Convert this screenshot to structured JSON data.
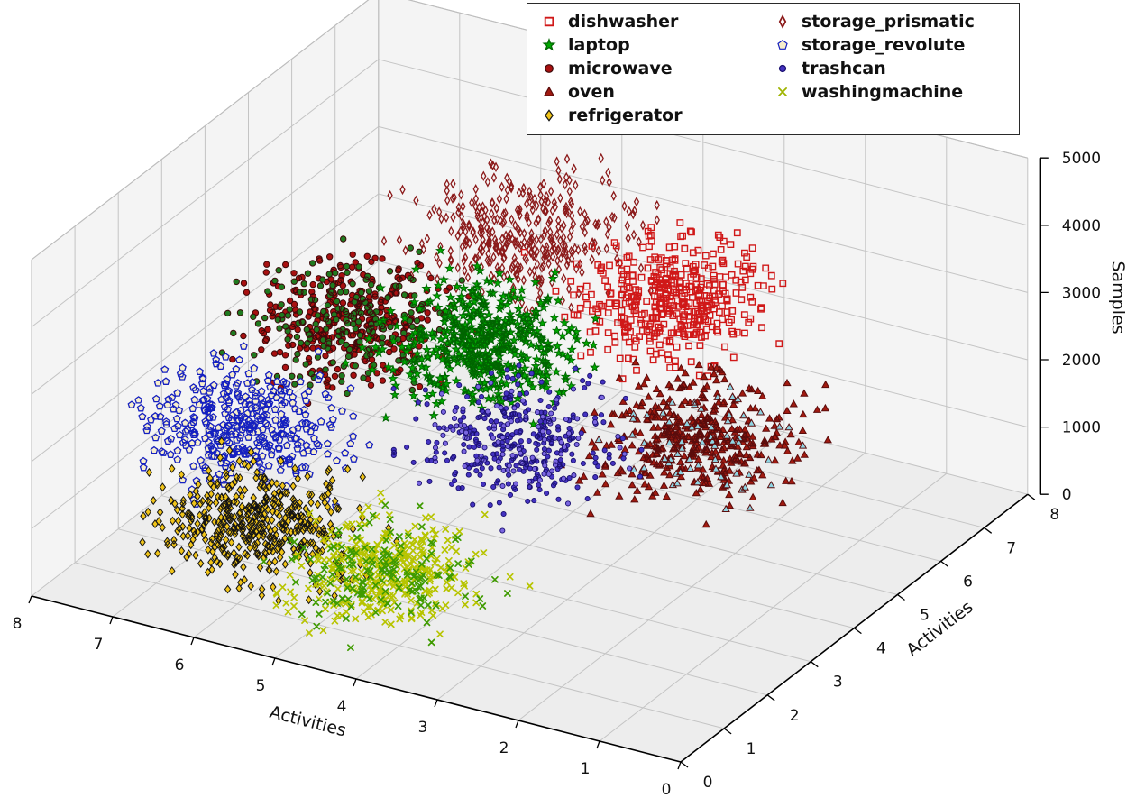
{
  "figure": {
    "background": "#ffffff"
  },
  "legend": {
    "border_color": "#2a2a2a",
    "columns": [
      [
        {
          "label": "dishwasher",
          "marker": "open-square",
          "color": "#d01818",
          "stroke": "#8b0000"
        },
        {
          "label": "laptop",
          "marker": "star",
          "color": "#00a800",
          "stroke": "#006400"
        },
        {
          "label": "microwave",
          "marker": "circle",
          "color": "#a81010",
          "stroke": "#3c0a0a"
        },
        {
          "label": "oven",
          "marker": "triangle",
          "color": "#a01a10",
          "stroke": "#5a0c0c"
        },
        {
          "label": "refrigerator",
          "marker": "diamond",
          "color": "#f0c419",
          "stroke": "#141414"
        }
      ],
      [
        {
          "label": "storage_prismatic",
          "marker": "thin-diamond",
          "color": "#8b1a1a",
          "stroke": "#8b1a1a"
        },
        {
          "label": "storage_revolute",
          "marker": "pentagon",
          "color": "#f7eecb",
          "stroke": "#1520c0"
        },
        {
          "label": "trashcan",
          "marker": "dot",
          "color": "#4433c0",
          "stroke": "#1a1070"
        },
        {
          "label": "washingmachine",
          "marker": "x",
          "color": "#9fb400",
          "stroke": "#3f9b00"
        }
      ]
    ]
  },
  "axes": {
    "x": {
      "label": "Activities",
      "ticks": [
        "0",
        "1",
        "2",
        "3",
        "4",
        "5",
        "6",
        "7",
        "8"
      ]
    },
    "y": {
      "label": "Activities",
      "ticks": [
        "0",
        "1",
        "2",
        "3",
        "4",
        "5",
        "6",
        "7",
        "8"
      ]
    },
    "z": {
      "label": "Samples",
      "ticks": [
        "0",
        "1000",
        "2000",
        "3000",
        "4000",
        "5000"
      ]
    }
  },
  "chart_data": {
    "type": "scatter",
    "projection": "3d",
    "title": "",
    "xlabel": "Activities",
    "ylabel": "Activities",
    "zlabel": "Samples",
    "xlim": [
      0,
      8
    ],
    "ylim": [
      0,
      8
    ],
    "zlim": [
      0,
      5000
    ],
    "grid": true,
    "legend_position": "top-center",
    "series": [
      {
        "name": "storage_prismatic",
        "marker": "thin-diamond",
        "fill": "none",
        "stroke": "#8b1a1a",
        "center": [
          4.5,
          4.9,
          4000
        ],
        "spread": [
          0.55,
          0.6,
          330
        ],
        "count": 380
      },
      {
        "name": "dishwasher",
        "marker": "open-square",
        "fill": "none",
        "stroke": "#d01818",
        "center": [
          3.2,
          5.8,
          3000
        ],
        "spread": [
          0.45,
          0.5,
          320
        ],
        "count": 430
      },
      {
        "name": "microwave",
        "marker": "circle",
        "fill": "#a81010",
        "stroke": "#3c0a0a",
        "alt_fill": "#1f7a1f",
        "alt_frac": 0.35,
        "center": [
          5.95,
          3.5,
          3000
        ],
        "spread": [
          0.5,
          0.5,
          330
        ],
        "count": 520
      },
      {
        "name": "laptop",
        "marker": "star",
        "fill": "#00a800",
        "stroke": "#006400",
        "center": [
          4.4,
          3.7,
          3000
        ],
        "spread": [
          0.5,
          0.5,
          340
        ],
        "count": 500
      },
      {
        "name": "oven",
        "marker": "triangle",
        "fill": "#a01a10",
        "stroke": "#5a0c0c",
        "alt_fill": "#8fd4e2",
        "alt_frac": 0.16,
        "center": [
          2.9,
          5.8,
          1000
        ],
        "spread": [
          0.5,
          0.55,
          320
        ],
        "count": 470
      },
      {
        "name": "storage_revolute",
        "marker": "pentagon",
        "fill": "#f7eecb",
        "stroke": "#1520c0",
        "center": [
          6.5,
          2.0,
          2000
        ],
        "spread": [
          0.5,
          0.5,
          320
        ],
        "count": 400
      },
      {
        "name": "trashcan",
        "marker": "dot",
        "fill": "#4433c0",
        "stroke": "#1a1070",
        "alt_fill": "#7a66e0",
        "alt_frac": 0.25,
        "center": [
          4.2,
          4.2,
          1400
        ],
        "spread": [
          0.5,
          0.55,
          320
        ],
        "count": 400
      },
      {
        "name": "refrigerator",
        "marker": "diamond",
        "fill": "#f0c419",
        "stroke": "#141414",
        "center": [
          6.0,
          1.4,
          1000
        ],
        "spread": [
          0.5,
          0.5,
          320
        ],
        "count": 470
      },
      {
        "name": "washingmachine",
        "marker": "x",
        "fill": "none",
        "stroke": "#b7c400",
        "alt_fill": "#3f9b00",
        "alt_frac": 0.3,
        "center": [
          4.8,
          2.1,
          300
        ],
        "spread": [
          0.45,
          0.5,
          260
        ],
        "count": 500
      }
    ]
  }
}
